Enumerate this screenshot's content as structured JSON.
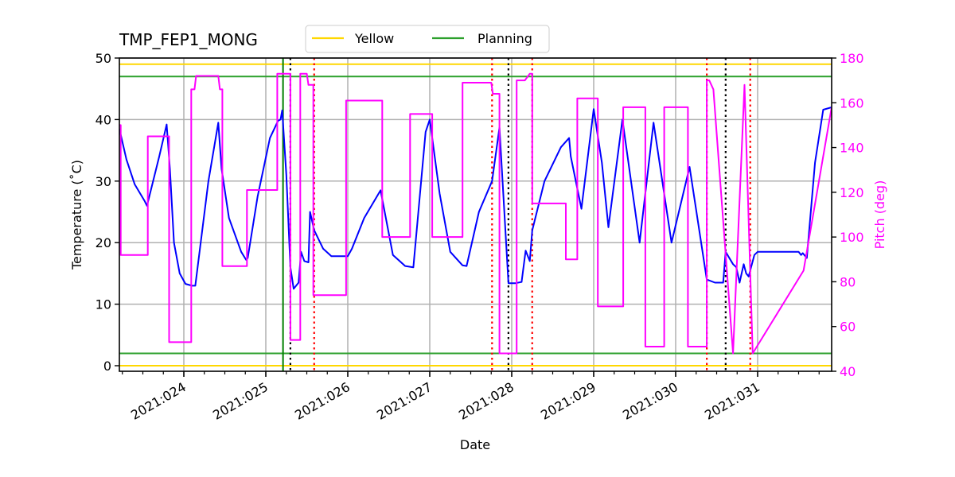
{
  "title": "TMP_FEP1_MONG",
  "legend": {
    "items": [
      {
        "label": "Yellow",
        "color": "#ffd700"
      },
      {
        "label": "Planning",
        "color": "#2ca02c"
      }
    ]
  },
  "axes": {
    "xlabel": "Date",
    "ylabel_left": "Temperature ($^\\circ$C)",
    "ylabel_left_display": "Temperature (˚C)",
    "ylabel_right": "Pitch (deg)",
    "left_ticks": [
      "0",
      "10",
      "20",
      "30",
      "40",
      "50"
    ],
    "right_ticks": [
      "40",
      "60",
      "80",
      "100",
      "120",
      "140",
      "160",
      "180"
    ],
    "x_ticks": [
      "2021:024",
      "2021:025",
      "2021:026",
      "2021:027",
      "2021:028",
      "2021:029",
      "2021:030",
      "2021:031"
    ]
  },
  "colors": {
    "temperature": "#0000ff",
    "pitch": "#ff00ff",
    "yellow_limit": "#ffd700",
    "planning_limit": "#2ca02c",
    "now_line": "#008000",
    "black_dotted": "#000000",
    "red_dotted": "#ff0000",
    "grid": "#b0b0b0",
    "right_axis_text": "#ff00ff"
  },
  "chart_data": {
    "type": "line",
    "title": "TMP_FEP1_MONG",
    "xlabel": "Date",
    "ylabel": "Temperature (°C)",
    "ylabel_right": "Pitch (deg)",
    "xlim_doy": [
      23.214,
      31.903
    ],
    "ylim": [
      0,
      50
    ],
    "ylim_right": [
      40,
      180
    ],
    "grid": true,
    "legend_position": "upper center (above axes)",
    "x_tick_labels": [
      "2021:024",
      "2021:025",
      "2021:026",
      "2021:027",
      "2021:028",
      "2021:029",
      "2021:030",
      "2021:031"
    ],
    "x_tick_doy": [
      24,
      25,
      26,
      27,
      28,
      29,
      30,
      31
    ],
    "horizontal_lines": [
      {
        "name": "Yellow",
        "y": 49,
        "color": "#ffd700",
        "axis": "left"
      },
      {
        "name": "Yellow",
        "y": 0,
        "color": "#ffd700",
        "axis": "left"
      },
      {
        "name": "Planning",
        "y": 47,
        "color": "#2ca02c",
        "axis": "left"
      },
      {
        "name": "Planning",
        "y": 2,
        "color": "#2ca02c",
        "axis": "left"
      }
    ],
    "vertical_lines": [
      {
        "doy": 25.21,
        "style": "solid",
        "color": "#008000"
      },
      {
        "doy": 25.3,
        "style": "dotted",
        "color": "#000000"
      },
      {
        "doy": 25.59,
        "style": "dotted",
        "color": "#ff0000"
      },
      {
        "doy": 27.76,
        "style": "dotted",
        "color": "#ff0000"
      },
      {
        "doy": 27.96,
        "style": "dotted",
        "color": "#000000"
      },
      {
        "doy": 28.25,
        "style": "dotted",
        "color": "#ff0000"
      },
      {
        "doy": 30.38,
        "style": "dotted",
        "color": "#ff0000"
      },
      {
        "doy": 30.61,
        "style": "dotted",
        "color": "#000000"
      },
      {
        "doy": 30.91,
        "style": "dotted",
        "color": "#ff0000"
      }
    ],
    "series": [
      {
        "name": "Temperature",
        "axis": "left",
        "color": "#0000ff",
        "x_doy": [
          23.214,
          23.3,
          23.4,
          23.52,
          23.55,
          23.7,
          23.79,
          23.83,
          23.88,
          23.95,
          24.02,
          24.1,
          24.14,
          24.3,
          24.42,
          24.46,
          24.55,
          24.7,
          24.76,
          24.78,
          24.9,
          25.05,
          25.15,
          25.18,
          25.2,
          25.25,
          25.3,
          25.34,
          25.4,
          25.43,
          25.47,
          25.52,
          25.54,
          25.59,
          25.7,
          25.8,
          26.0,
          26.05,
          26.2,
          26.4,
          26.55,
          26.7,
          26.8,
          26.95,
          27.0,
          27.12,
          27.25,
          27.4,
          27.45,
          27.6,
          27.76,
          27.85,
          27.96,
          28.04,
          28.12,
          28.17,
          28.22,
          28.25,
          28.4,
          28.6,
          28.7,
          28.72,
          28.85,
          29.0,
          29.1,
          29.18,
          29.35,
          29.56,
          29.73,
          29.95,
          30.17,
          30.38,
          30.48,
          30.58,
          30.61,
          30.7,
          30.74,
          30.78,
          30.83,
          30.86,
          30.89,
          30.96,
          31.0,
          31.2,
          31.5,
          31.53,
          31.55,
          31.6,
          31.7,
          31.8,
          31.903
        ],
        "values": [
          38.5,
          33.5,
          29.5,
          26.8,
          26.0,
          34.0,
          39.2,
          32.0,
          20.0,
          15.0,
          13.3,
          13.0,
          13.0,
          30.0,
          39.5,
          32.0,
          24.0,
          18.5,
          17.2,
          17.5,
          27.5,
          37.0,
          39.8,
          40.0,
          41.5,
          31.0,
          16.0,
          12.5,
          13.5,
          18.5,
          17.0,
          16.8,
          25.0,
          22.0,
          19.0,
          17.8,
          17.8,
          19.0,
          24.0,
          28.5,
          18.0,
          16.2,
          16.0,
          38.0,
          40.0,
          28.0,
          18.5,
          16.3,
          16.2,
          25.0,
          30.0,
          38.7,
          13.4,
          13.4,
          13.6,
          18.7,
          17.0,
          22.0,
          30.0,
          35.5,
          37.0,
          34.0,
          25.5,
          41.7,
          33.0,
          22.5,
          40.0,
          20.0,
          39.5,
          20.0,
          32.3,
          14.0,
          13.5,
          13.5,
          18.5,
          16.5,
          16.0,
          13.5,
          16.5,
          15.0,
          14.5,
          18.0,
          18.5,
          18.5,
          18.5,
          18.0,
          18.3,
          17.5,
          33.0,
          41.6,
          42.0
        ]
      },
      {
        "name": "Pitch",
        "axis": "right",
        "color": "#ff00ff",
        "x_doy": [
          23.214,
          23.23,
          23.23,
          23.56,
          23.56,
          23.82,
          23.82,
          24.09,
          24.09,
          24.13,
          24.15,
          24.17,
          24.42,
          24.44,
          24.47,
          24.47,
          24.77,
          24.77,
          25.14,
          25.14,
          25.18,
          25.3,
          25.3,
          25.42,
          25.42,
          25.5,
          25.52,
          25.58,
          25.58,
          25.98,
          25.98,
          26.42,
          26.42,
          26.76,
          26.76,
          27.03,
          27.03,
          27.4,
          27.4,
          27.75,
          27.77,
          27.85,
          27.85,
          28.06,
          28.06,
          28.1,
          28.16,
          28.22,
          28.25,
          28.25,
          28.66,
          28.66,
          28.8,
          28.8,
          29.05,
          29.05,
          29.36,
          29.36,
          29.63,
          29.63,
          29.86,
          29.86,
          30.15,
          30.15,
          30.38,
          30.38,
          30.41,
          30.46,
          30.46,
          30.7,
          30.7,
          30.84,
          30.84,
          30.94,
          30.94,
          31.56,
          31.56,
          31.903
        ],
        "values": [
          150,
          150,
          92,
          92,
          145,
          145,
          53,
          53,
          166,
          166,
          172,
          172,
          172,
          166,
          166,
          87,
          87,
          121,
          121,
          173,
          173,
          173,
          54,
          54,
          173,
          173,
          168,
          168,
          74,
          74,
          161,
          161,
          100,
          100,
          155,
          155,
          100,
          100,
          169,
          169,
          164,
          164,
          48,
          48,
          170,
          170,
          170,
          173,
          173,
          115,
          115,
          90,
          90,
          162,
          162,
          69,
          69,
          158,
          158,
          51,
          51,
          158,
          158,
          51,
          51,
          170,
          170,
          166,
          166,
          48,
          48,
          168,
          168,
          48,
          48,
          85,
          85,
          158
        ]
      }
    ]
  }
}
